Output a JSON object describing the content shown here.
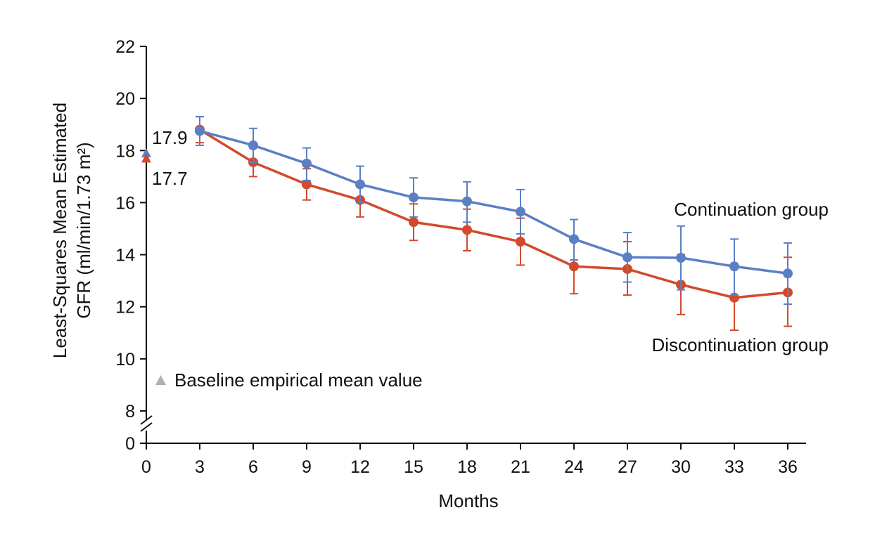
{
  "chart_data": {
    "type": "line",
    "title": "",
    "xlabel": "Months",
    "ylabel_line1": "Least-Squares Mean Estimated",
    "ylabel_line2": "GFR (ml/min/1.73 m²)",
    "x_ticks": [
      "0",
      "3",
      "6",
      "9",
      "12",
      "15",
      "18",
      "21",
      "24",
      "27",
      "30",
      "33",
      "36"
    ],
    "y_ticks": [
      "0",
      "8",
      "10",
      "12",
      "14",
      "16",
      "18",
      "20",
      "22"
    ],
    "xlim": [
      0,
      36
    ],
    "ylim": [
      8,
      22
    ],
    "y_axis_break": true,
    "grid": false,
    "baseline": {
      "legend_label": "Baseline empirical mean value",
      "legend_color": "#b0b0b0",
      "points": [
        {
          "series": "Continuation group",
          "x": 0,
          "y": 17.9,
          "label": "17.9"
        },
        {
          "series": "Discontinuation group",
          "x": 0,
          "y": 17.7,
          "label": "17.7"
        }
      ]
    },
    "series": [
      {
        "name": "Continuation group",
        "color": "#5b7fc4",
        "x": [
          3,
          6,
          9,
          12,
          15,
          18,
          21,
          24,
          27,
          30,
          33,
          36
        ],
        "values": [
          18.75,
          18.2,
          17.5,
          16.7,
          16.2,
          16.05,
          15.65,
          14.6,
          13.9,
          13.88,
          13.55,
          13.28
        ],
        "error_low": [
          18.2,
          17.55,
          16.85,
          16.0,
          15.45,
          15.25,
          14.8,
          13.8,
          12.95,
          12.65,
          12.45,
          12.1
        ],
        "error_high": [
          19.3,
          18.85,
          18.1,
          17.4,
          16.95,
          16.8,
          16.5,
          15.35,
          14.85,
          15.1,
          14.6,
          14.45
        ]
      },
      {
        "name": "Discontinuation group",
        "color": "#d14a2c",
        "x": [
          3,
          6,
          9,
          12,
          15,
          18,
          21,
          24,
          27,
          30,
          33,
          36
        ],
        "values": [
          18.8,
          17.55,
          16.7,
          16.1,
          15.25,
          14.95,
          14.5,
          13.55,
          13.45,
          12.85,
          12.35,
          12.55
        ],
        "error_low": [
          18.3,
          17.0,
          16.1,
          15.45,
          14.55,
          14.15,
          13.6,
          12.5,
          12.45,
          11.7,
          11.1,
          11.25
        ],
        "error_high": [
          19.3,
          18.1,
          17.3,
          16.75,
          15.95,
          15.75,
          15.4,
          14.6,
          14.5,
          14.0,
          13.6,
          13.9
        ]
      }
    ]
  }
}
